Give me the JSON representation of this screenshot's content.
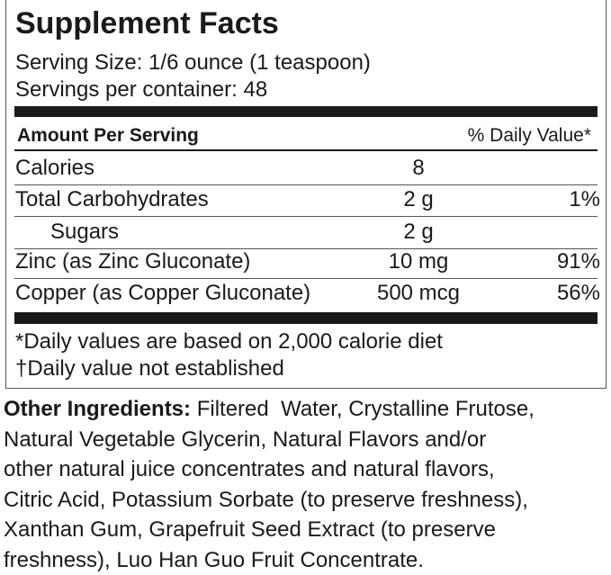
{
  "header": {
    "title": "Supplement Facts",
    "serving_size": "Serving Size: 1/6 ounce (1 teaspoon)",
    "servings_per_container": "Servings per container: 48"
  },
  "table": {
    "header": [
      "Amount Per Serving",
      "% Daily Value*"
    ],
    "rows": [
      [
        "Calories",
        "8",
        null
      ],
      [
        "Total Carbohydrates",
        "2 g",
        "1%"
      ],
      [
        "Sugars",
        "2 g",
        null
      ],
      [
        "Zinc (as Zinc Gluconate)",
        "10 mg",
        "91%"
      ],
      [
        "Copper (as Copper Gluconate)",
        "500 mcg",
        "56%"
      ]
    ]
  },
  "footnotes": [
    "*Daily values are based on 2,000 calorie diet",
    "†Daily value not established"
  ],
  "ingredients": {
    "label": "Other Ingredients:",
    "lines": [
      " Filtered  Water, Crystalline Frutose,",
      "Natural Vegetable Glycerin, Natural Flavors and/or",
      "other natural juice concentrates and natural flavors,",
      "Citric Acid, Potassium Sorbate (to preserve freshness),",
      "Xanthan Gum, Grapefruit Seed Extract (to preserve",
      "freshness), Luo Han Guo Fruit Concentrate."
    ]
  }
}
